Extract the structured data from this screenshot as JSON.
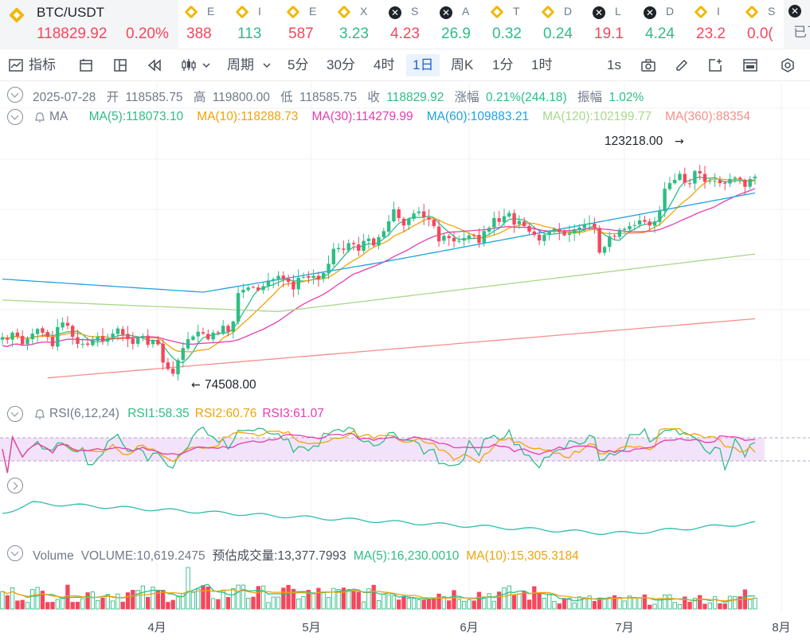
{
  "ticker": {
    "main": {
      "symbol": "BTC/USDT",
      "price": "118829.92",
      "change": "0.20%"
    },
    "items": [
      {
        "icon": "bnb",
        "stub": "E",
        "value": "388",
        "dir": "down"
      },
      {
        "icon": "bnb",
        "stub": "I",
        "value": "113",
        "dir": "up"
      },
      {
        "icon": "bnb",
        "stub": "E",
        "value": "587",
        "dir": "down"
      },
      {
        "icon": "bnb",
        "stub": "X",
        "value": "3.23",
        "dir": "up"
      },
      {
        "icon": "x",
        "stub": "S",
        "value": "4.23",
        "dir": "down"
      },
      {
        "icon": "x",
        "stub": "A",
        "value": "26.9",
        "dir": "up"
      },
      {
        "icon": "bnb",
        "stub": "T",
        "value": "0.32",
        "dir": "up"
      },
      {
        "icon": "bnb",
        "stub": "D",
        "value": "0.24",
        "dir": "up"
      },
      {
        "icon": "x",
        "stub": "L",
        "value": "19.1",
        "dir": "down"
      },
      {
        "icon": "x",
        "stub": "D",
        "value": "4.24",
        "dir": "up"
      },
      {
        "icon": "bnb",
        "stub": "I",
        "value": "23.2",
        "dir": "down"
      },
      {
        "icon": "bnb",
        "stub": "S",
        "value": "0.0(",
        "dir": "down"
      }
    ],
    "added_label": "已了"
  },
  "toolbar": {
    "indicator": "指标",
    "period": "周期",
    "intervals": [
      "5分",
      "30分",
      "4时",
      "1日",
      "周K",
      "1分",
      "1时"
    ],
    "active_interval": "1日",
    "refresh": "1s"
  },
  "ohlc": {
    "date": "2025-07-28",
    "open_label": "开",
    "open": "118585.75",
    "high_label": "高",
    "high": "119800.00",
    "low_label": "低",
    "low": "118585.75",
    "close_label": "收",
    "close": "118829.92",
    "change_label": "涨幅",
    "change": "0.21%(244.18)",
    "amp_label": "振幅",
    "amp": "1.02%"
  },
  "ma_legend": {
    "name": "MA",
    "items": [
      {
        "text": "MA(5):118073.10",
        "color": "#2ebd85"
      },
      {
        "text": "MA(10):118288.73",
        "color": "#f0a30a"
      },
      {
        "text": "MA(30):114279.99",
        "color": "#e63cb0"
      },
      {
        "text": "MA(60):109883.21",
        "color": "#1ea3e0"
      },
      {
        "text": "MA(120):102199.77",
        "color": "#a8d88a"
      },
      {
        "text": "MA(360):88354",
        "color": "#f2908a"
      }
    ]
  },
  "rsi_legend": {
    "name": "RSI(6,12,24)",
    "items": [
      {
        "text": "RSI1:58.35",
        "color": "#2ebd85"
      },
      {
        "text": "RSI2:60.76",
        "color": "#f0a30a"
      },
      {
        "text": "RSI3:61.07",
        "color": "#e63cb0"
      }
    ]
  },
  "volume_legend": {
    "items": [
      {
        "text": "Volume",
        "color": "#707a8a"
      },
      {
        "text": "VOLUME:10,619.2475",
        "color": "#707a8a"
      },
      {
        "text": "预估成交量:13,377.7993",
        "color": "#474d57"
      },
      {
        "text": "MA(5):16,230.0010",
        "color": "#2ebd85"
      },
      {
        "text": "MA(10):15,305.3184",
        "color": "#f0a30a"
      }
    ]
  },
  "chart_data": {
    "type": "candlestick",
    "symbol": "BTC/USDT",
    "interval": "1日",
    "x_ticks": [
      "4月",
      "5月",
      "6月",
      "7月",
      "8月"
    ],
    "annotations": [
      {
        "label": "123218.00",
        "kind": "high",
        "value": 123218
      },
      {
        "label": "74508.00",
        "kind": "low",
        "value": 74508
      }
    ],
    "price_range": [
      72000,
      126000
    ],
    "closes": [
      84000,
      83500,
      85000,
      84200,
      82500,
      83700,
      84800,
      85800,
      85000,
      84100,
      82100,
      86200,
      87200,
      86500,
      84100,
      82600,
      82600,
      82400,
      83400,
      84200,
      83100,
      83800,
      84800,
      85900,
      84600,
      83600,
      82600,
      84000,
      84300,
      82400,
      83400,
      82500,
      78600,
      77200,
      76200,
      79100,
      81700,
      83600,
      84200,
      85200,
      84800,
      83600,
      85000,
      84900,
      86500,
      85200,
      87400,
      93500,
      94200,
      94700,
      94800,
      94100,
      95000,
      96200,
      96500,
      97200,
      96500,
      95900,
      94300,
      96800,
      97000,
      96800,
      97200,
      96500,
      97800,
      99800,
      103000,
      103200,
      102800,
      104200,
      104000,
      102600,
      104700,
      105200,
      103700,
      105500,
      106800,
      108900,
      111500,
      109600,
      108000,
      109500,
      110600,
      111000,
      109800,
      109300,
      107900,
      104600,
      105800,
      105300,
      104600,
      104700,
      105300,
      105900,
      105900,
      104300,
      106800,
      107500,
      109600,
      108800,
      110000,
      110700,
      108200,
      109000,
      107900,
      106700,
      106000,
      104800,
      106000,
      106900,
      107300,
      106600,
      105900,
      106300,
      107200,
      107600,
      108300,
      108500,
      107600,
      102200,
      103400,
      105700,
      105700,
      107100,
      107300,
      107900,
      108100,
      109100,
      108800,
      108000,
      108900,
      111200,
      115900,
      117100,
      117800,
      119100,
      117200,
      117000,
      119700,
      119200,
      117400,
      117600,
      117600,
      117100,
      117000,
      118000,
      118300,
      117900,
      116300,
      118000,
      118500
    ],
    "volume_max": 55000,
    "rsi_levels": [
      70,
      30
    ],
    "ylabel_units": "USDT"
  }
}
